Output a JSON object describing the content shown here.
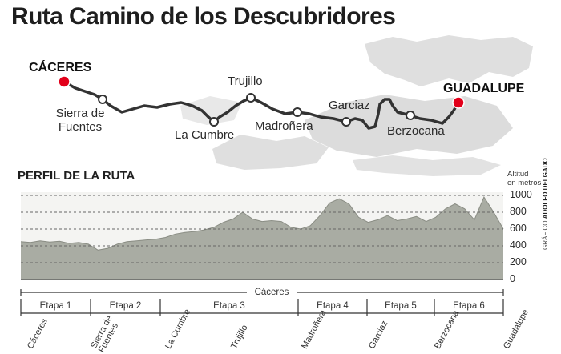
{
  "title": "Ruta Camino de los Descubridores",
  "map": {
    "start": "CÁCERES",
    "end": "GUADALUPE",
    "towns": {
      "sierra": [
        "Sierra de",
        "Fuentes"
      ],
      "cumbre": "La Cumbre",
      "trujillo": "Trujillo",
      "madronera": "Madroñera",
      "garciaz": "Garciaz",
      "berzocana": "Berzocana"
    },
    "colors": {
      "route": "#333333",
      "endpoint": "#e2001a",
      "relief": "#d5d5d5"
    }
  },
  "profile": {
    "title": "PERFIL DE LA RUTA",
    "altitude_label": [
      "Altitud",
      "en metros"
    ],
    "credit_prefix": "GRÁFICO",
    "credit_name": "ADOLFO DELGADO",
    "region": "Cáceres",
    "fill_color": "#a9aca3"
  },
  "chart_data": {
    "type": "area",
    "title": "PERFIL DE LA RUTA",
    "ylabel": "Altitud en metros",
    "ylim": [
      0,
      1000
    ],
    "yticks": [
      "1000",
      "800",
      "600",
      "400",
      "200",
      "0"
    ],
    "grid": true,
    "x": [
      0,
      2,
      4,
      6,
      8,
      10,
      12,
      14,
      16,
      18,
      20,
      22,
      24,
      26,
      28,
      30,
      32,
      34,
      36,
      38,
      40,
      42,
      44,
      46,
      48,
      50,
      52,
      54,
      56,
      58,
      60,
      62,
      64,
      66,
      68,
      70,
      72,
      74,
      76,
      78,
      80,
      82,
      84,
      86,
      88,
      90,
      92,
      94,
      96,
      98,
      100
    ],
    "values": [
      450,
      440,
      460,
      445,
      455,
      430,
      440,
      420,
      350,
      370,
      420,
      450,
      460,
      470,
      480,
      500,
      540,
      560,
      570,
      590,
      620,
      680,
      720,
      800,
      720,
      690,
      700,
      690,
      620,
      600,
      640,
      760,
      910,
      960,
      900,
      740,
      680,
      710,
      760,
      700,
      720,
      750,
      690,
      740,
      840,
      900,
      840,
      710,
      980,
      800,
      600
    ],
    "stages": [
      "Etapa 1",
      "Etapa 2",
      "Etapa 3",
      "Etapa 4",
      "Etapa 5",
      "Etapa 6"
    ],
    "towns": [
      "Cáceres",
      "Sierra de Fuentes",
      "La Cumbre",
      "Trujillo",
      "Madroñera",
      "Garciaz",
      "Berzocana",
      "Guadalupe"
    ]
  }
}
